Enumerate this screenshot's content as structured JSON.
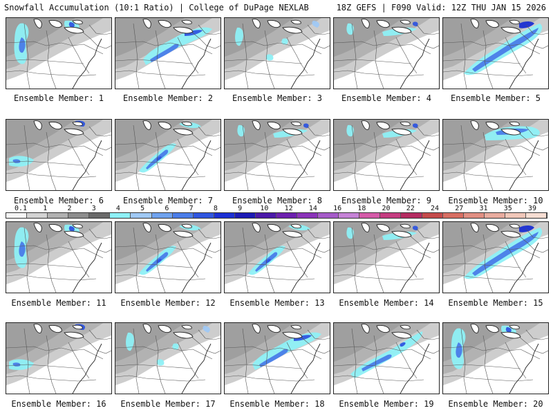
{
  "header": {
    "left": "Snowfall Accumulation (10:1 Ratio) | College of DuPage NEXLAB",
    "right": "18Z GEFS | F090 Valid: 12Z THU JAN 15 2026"
  },
  "members": [
    {
      "label": "Ensemble Member: 1",
      "snow": "western"
    },
    {
      "label": "Ensemble Member: 2",
      "snow": "central"
    },
    {
      "label": "Ensemble Member: 3",
      "snow": "scattered"
    },
    {
      "label": "Ensemble Member: 4",
      "snow": "light"
    },
    {
      "label": "Ensemble Member: 5",
      "snow": "heavy-east"
    },
    {
      "label": "Ensemble Member: 6",
      "snow": "light-sw"
    },
    {
      "label": "Ensemble Member: 7",
      "snow": "band"
    },
    {
      "label": "Ensemble Member: 8",
      "snow": "light"
    },
    {
      "label": "Ensemble Member: 9",
      "snow": "light"
    },
    {
      "label": "Ensemble Member: 10",
      "snow": "north"
    },
    {
      "label": "Ensemble Member: 11",
      "snow": "western"
    },
    {
      "label": "Ensemble Member: 12",
      "snow": "band"
    },
    {
      "label": "Ensemble Member: 13",
      "snow": "band"
    },
    {
      "label": "Ensemble Member: 14",
      "snow": "light"
    },
    {
      "label": "Ensemble Member: 15",
      "snow": "heavy-east"
    },
    {
      "label": "Ensemble Member: 16",
      "snow": "light-sw"
    },
    {
      "label": "Ensemble Member: 17",
      "snow": "scattered"
    },
    {
      "label": "Ensemble Member: 18",
      "snow": "central"
    },
    {
      "label": "Ensemble Member: 19",
      "snow": "south-band"
    },
    {
      "label": "Ensemble Member: 20",
      "snow": "western"
    }
  ],
  "legend": {
    "labels": [
      "0.1",
      "1",
      "2",
      "3",
      "4",
      "5",
      "6",
      "7",
      "8",
      "9",
      "10",
      "12",
      "14",
      "16",
      "18",
      "20",
      "22",
      "24",
      "27",
      "31",
      "35",
      "39"
    ],
    "colors": [
      "#f4f4f4",
      "#d2d2d2",
      "#b0b0b0",
      "#8c8c8c",
      "#6a6a6a",
      "#8ef0f6",
      "#9fc8f4",
      "#6fa2ee",
      "#4a7ce8",
      "#2f55df",
      "#1b2fd3",
      "#1c1ab4",
      "#4a18a8",
      "#6c1fae",
      "#8a32b8",
      "#a55ac8",
      "#c582d6",
      "#d45aa8",
      "#c43c80",
      "#b42b60",
      "#c44a4a",
      "#d76e62",
      "#e08e82",
      "#e8ab9e",
      "#f0c6b8",
      "#f6ddd2"
    ]
  }
}
